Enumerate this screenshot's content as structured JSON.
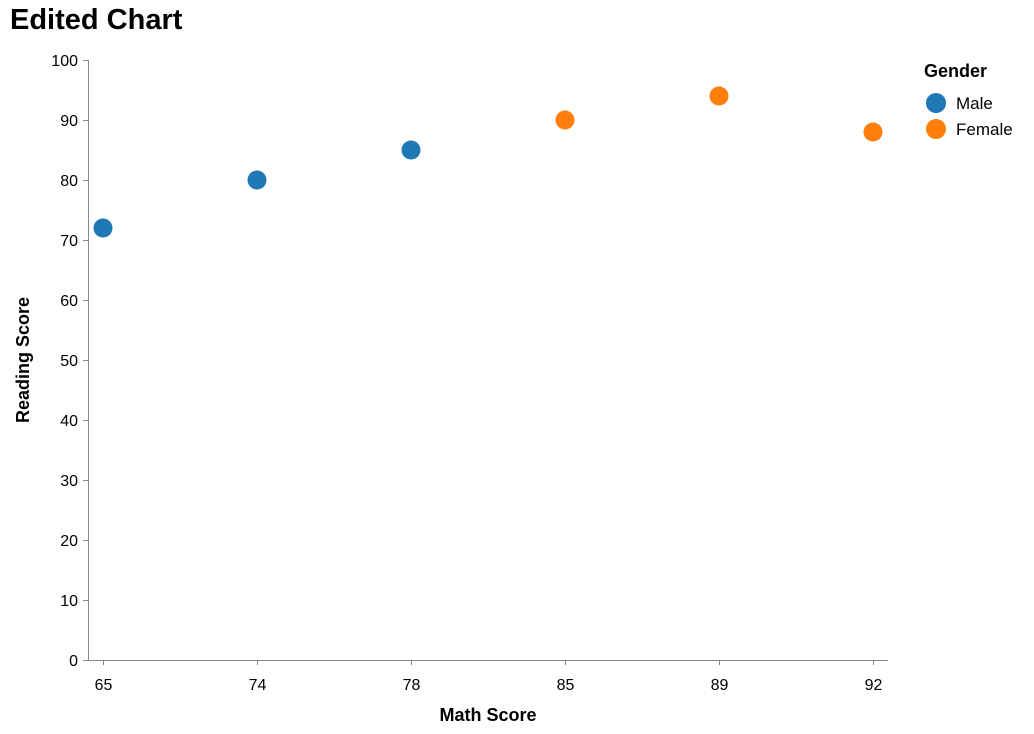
{
  "chart_data": {
    "type": "scatter",
    "title": "Edited Chart",
    "xlabel": "Math Score",
    "ylabel": "Reading Score",
    "x_scale": "ordinal",
    "categories": [
      "65",
      "74",
      "78",
      "85",
      "89",
      "92"
    ],
    "ylim": [
      0,
      100
    ],
    "y_ticks": [
      0,
      10,
      20,
      30,
      40,
      50,
      60,
      70,
      80,
      90,
      100
    ],
    "grid": false,
    "legend": {
      "title": "Gender",
      "placement": "top-right",
      "entries": [
        {
          "name": "Male",
          "color": "#1f77b4"
        },
        {
          "name": "Female",
          "color": "#ff7f0e"
        }
      ]
    },
    "points": [
      {
        "x": "65",
        "y": 72,
        "series": "Male"
      },
      {
        "x": "74",
        "y": 80,
        "series": "Male"
      },
      {
        "x": "78",
        "y": 85,
        "series": "Male"
      },
      {
        "x": "85",
        "y": 90,
        "series": "Female"
      },
      {
        "x": "89",
        "y": 94,
        "series": "Female"
      },
      {
        "x": "92",
        "y": 88,
        "series": "Female"
      }
    ]
  }
}
